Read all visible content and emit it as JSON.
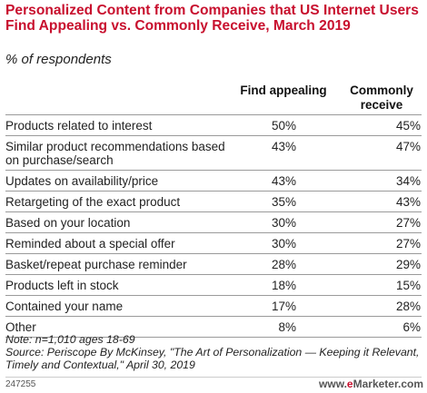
{
  "header": {
    "title": "Personalized Content from Companies that US Internet Users Find Appealing vs. Commonly Receive, March 2019",
    "subtitle": "% of respondents"
  },
  "chart_data": {
    "type": "table",
    "columns": [
      "Find appealing",
      "Commonly receive"
    ],
    "rows": [
      {
        "label": "Products related to interest",
        "find_appealing": "50%",
        "commonly_receive": "45%"
      },
      {
        "label": "Similar product recommendations based on purchase/search",
        "find_appealing": "43%",
        "commonly_receive": "47%"
      },
      {
        "label": "Updates on availability/price",
        "find_appealing": "43%",
        "commonly_receive": "34%"
      },
      {
        "label": "Retargeting of the exact product",
        "find_appealing": "35%",
        "commonly_receive": "43%"
      },
      {
        "label": "Based on your location",
        "find_appealing": "30%",
        "commonly_receive": "27%"
      },
      {
        "label": "Reminded about a special offer",
        "find_appealing": "30%",
        "commonly_receive": "27%"
      },
      {
        "label": "Basket/repeat purchase reminder",
        "find_appealing": "28%",
        "commonly_receive": "29%"
      },
      {
        "label": "Products left in stock",
        "find_appealing": "18%",
        "commonly_receive": "15%"
      },
      {
        "label": "Contained your name",
        "find_appealing": "17%",
        "commonly_receive": "28%"
      },
      {
        "label": "Other",
        "find_appealing": "8%",
        "commonly_receive": "6%"
      }
    ]
  },
  "footer": {
    "note": "Note: n=1,010 ages 18-69",
    "source": "Source: Periscope By McKinsey, \"The Art of Personalization — Keeping it Relevant, Timely and Contextual,\" April 30, 2019",
    "chart_id": "247255",
    "brand_prefix": "www.",
    "brand_e": "e",
    "brand_rest": "Marketer",
    "brand_suffix": ".com"
  },
  "colors": {
    "title": "#c8102e",
    "rule": "#9a9a9a"
  }
}
